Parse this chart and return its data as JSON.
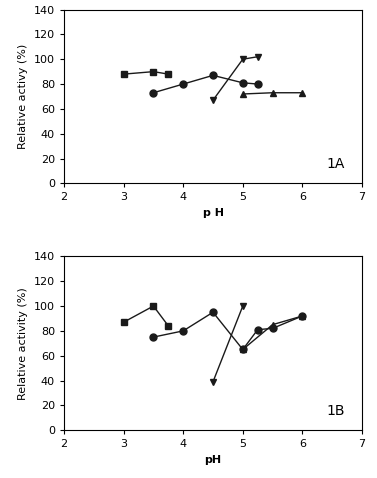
{
  "panel_A": {
    "label": "1A",
    "series1": {
      "x": [
        3.0,
        3.5,
        3.75
      ],
      "y": [
        88,
        90,
        88
      ],
      "marker": "s"
    },
    "series2": {
      "x": [
        3.5,
        4.0,
        4.5,
        5.0,
        5.25
      ],
      "y": [
        73,
        80,
        87,
        81,
        80
      ],
      "marker": "o"
    },
    "series3": {
      "x": [
        4.5,
        5.0,
        5.25
      ],
      "y": [
        67,
        100,
        102
      ],
      "marker": "v"
    },
    "series4": {
      "x": [
        5.0,
        5.5,
        6.0
      ],
      "y": [
        72,
        73,
        73
      ],
      "marker": "^"
    },
    "xlabel": "p H",
    "ylabel": "Relative activy (%)",
    "xlim": [
      2,
      7
    ],
    "ylim": [
      0,
      140
    ],
    "yticks": [
      0,
      20,
      40,
      60,
      80,
      100,
      120,
      140
    ],
    "xticks": [
      2,
      3,
      4,
      5,
      6,
      7
    ]
  },
  "panel_B": {
    "label": "1B",
    "series1": {
      "x": [
        3.0,
        3.5,
        3.75
      ],
      "y": [
        87,
        100,
        84
      ],
      "marker": "s"
    },
    "series2": {
      "x": [
        3.5,
        4.0,
        4.5,
        5.0,
        5.25,
        5.5,
        6.0
      ],
      "y": [
        75,
        80,
        95,
        65,
        81,
        82,
        92
      ],
      "marker": "o"
    },
    "series3": {
      "x": [
        4.5,
        5.0
      ],
      "y": [
        39,
        100
      ],
      "marker": "v"
    },
    "series4": {
      "x": [
        5.0,
        5.5,
        6.0
      ],
      "y": [
        65,
        85,
        92
      ],
      "marker": "^"
    },
    "xlabel": "pH",
    "ylabel": "Relative activity (%)",
    "xlim": [
      2,
      7
    ],
    "ylim": [
      0,
      140
    ],
    "yticks": [
      0,
      20,
      40,
      60,
      80,
      100,
      120,
      140
    ],
    "xticks": [
      2,
      3,
      4,
      5,
      6,
      7
    ]
  },
  "line_color": "#1a1a1a",
  "marker_color": "#1a1a1a",
  "marker_size": 5,
  "line_width": 1.0,
  "label_fontsize": 8,
  "tick_fontsize": 8,
  "annot_fontsize": 10,
  "figsize": [
    3.77,
    4.78
  ],
  "dpi": 100
}
